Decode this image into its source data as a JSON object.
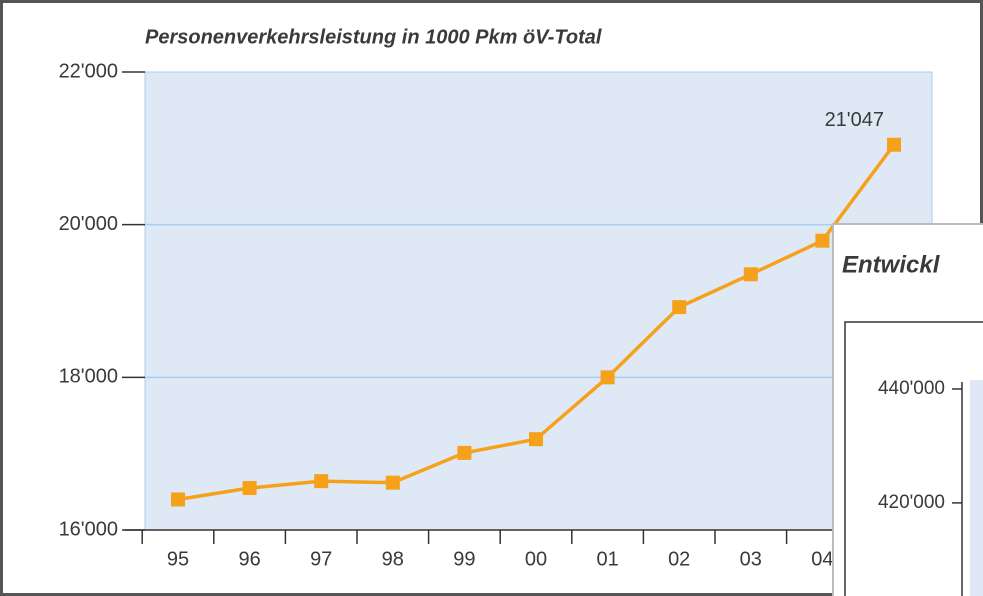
{
  "chart_data": [
    {
      "type": "line",
      "title": "Personenverkehrsleistung in 1000 Pkm öV-Total",
      "categories": [
        "95",
        "96",
        "97",
        "98",
        "99",
        "00",
        "01",
        "02",
        "03",
        "04",
        null
      ],
      "series": [
        {
          "color": "#f5a11c",
          "values": [
            16400,
            16550,
            16640,
            16620,
            17010,
            17190,
            18000,
            18920,
            19350,
            19790,
            21047
          ],
          "value_labels": [
            null,
            null,
            null,
            null,
            null,
            null,
            null,
            null,
            null,
            null,
            "21'047"
          ]
        }
      ],
      "ylim": [
        16000,
        22000
      ],
      "yticks": [
        {
          "value": 16000,
          "label": "16'000"
        },
        {
          "value": 18000,
          "label": "18'000"
        },
        {
          "value": 20000,
          "label": "20'000"
        },
        {
          "value": 22000,
          "label": "22'000"
        }
      ],
      "grid": true
    },
    {
      "type": "line",
      "title": "Entwickl",
      "ylim": [
        404000,
        440000
      ],
      "yticks": [
        {
          "value": 420000,
          "label": "420'000"
        },
        {
          "value": 440000,
          "label": "440'000"
        }
      ]
    }
  ]
}
